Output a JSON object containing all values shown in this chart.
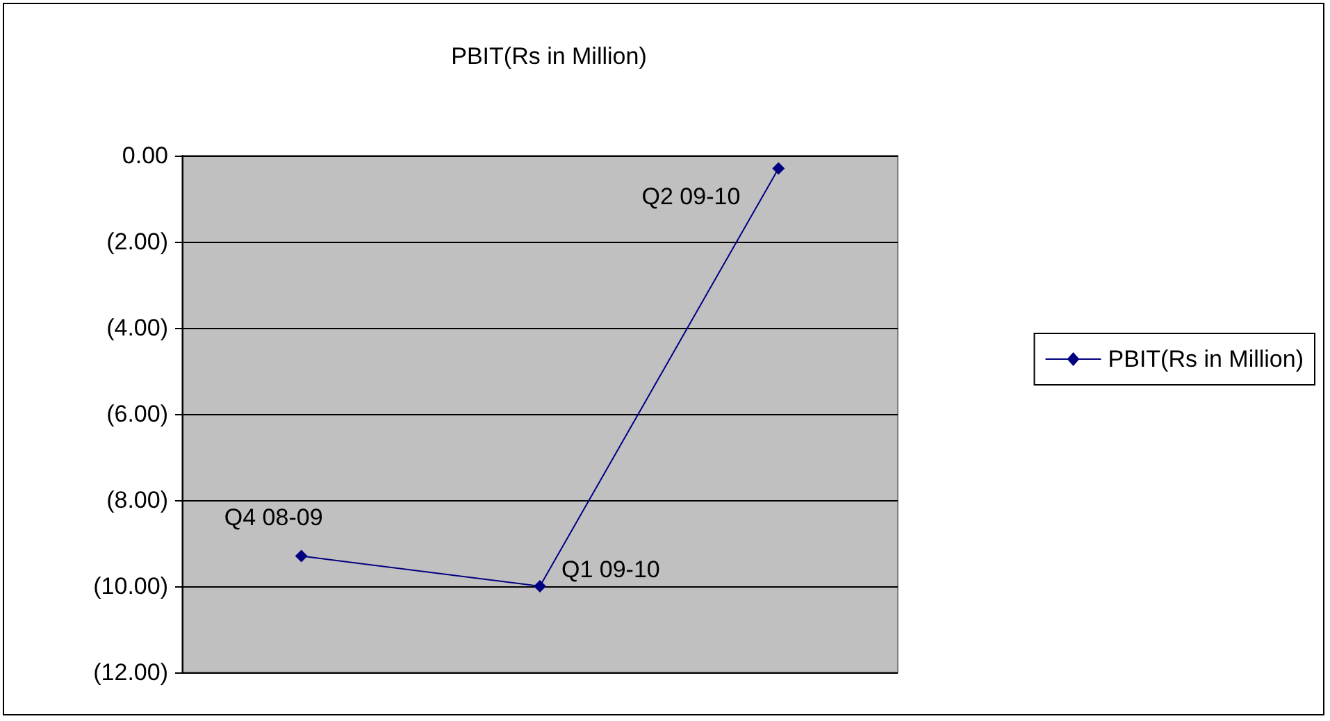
{
  "chart_data": {
    "type": "line",
    "title": "PBIT(Rs in Million)",
    "categories": [
      "Q4 08-09",
      "Q1 09-10",
      "Q2 09-10"
    ],
    "series": [
      {
        "name": "PBIT(Rs in Million)",
        "color": "#000080",
        "values": [
          -9.3,
          -10.0,
          -0.3
        ]
      }
    ],
    "ylim": [
      -12,
      0
    ],
    "yticks": [
      {
        "value": -12,
        "label": "(12.00)"
      },
      {
        "value": -10,
        "label": "(10.00)"
      },
      {
        "value": -8,
        "label": "(8.00)"
      },
      {
        "value": -6,
        "label": "(6.00)"
      },
      {
        "value": -4,
        "label": "(4.00)"
      },
      {
        "value": -2,
        "label": "(2.00)"
      },
      {
        "value": 0,
        "label": "0.00"
      }
    ],
    "tick_labels": "y",
    "grid": "y",
    "legend": "right",
    "marker": "diamond",
    "line_style": "solid"
  }
}
